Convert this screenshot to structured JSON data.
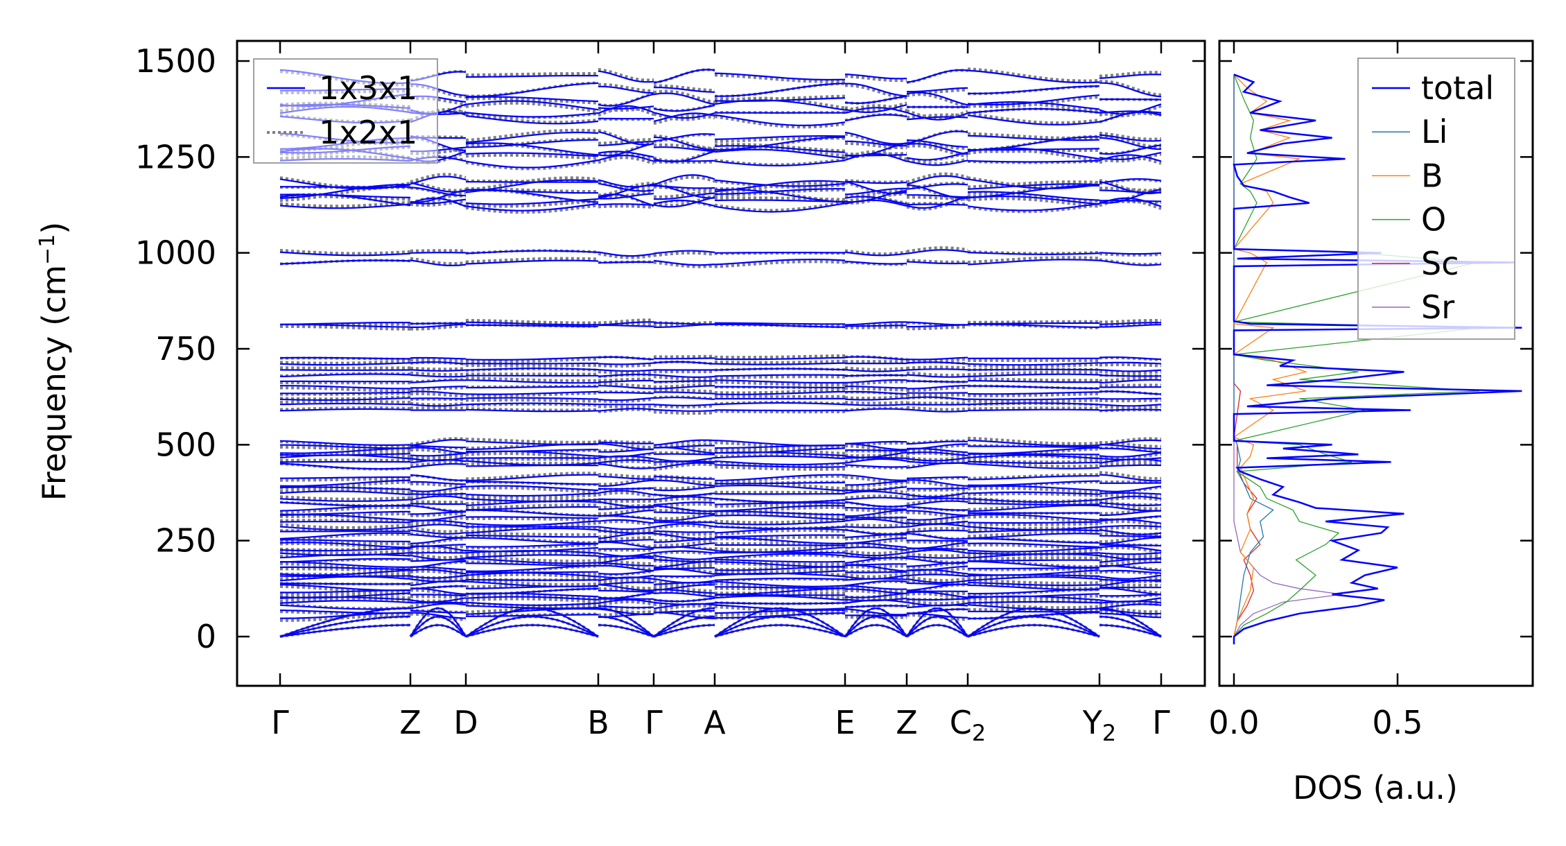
{
  "chart_data": [
    {
      "type": "line",
      "title": "",
      "ylabel": "Frequency (cm⁻¹)",
      "ylabel_main": "Frequency (cm",
      "ylabel_sup": "−1",
      "ylabel_close": ")",
      "ylim": [
        -125,
        1560
      ],
      "yticks": [
        0,
        250,
        500,
        750,
        1000,
        1250,
        1500
      ],
      "xticks": [
        {
          "label": "Γ",
          "sub": ""
        },
        {
          "label": "Z",
          "sub": ""
        },
        {
          "label": "D",
          "sub": ""
        },
        {
          "label": "B",
          "sub": ""
        },
        {
          "label": "Γ",
          "sub": ""
        },
        {
          "label": "A",
          "sub": ""
        },
        {
          "label": "E",
          "sub": ""
        },
        {
          "label": "Z",
          "sub": ""
        },
        {
          "label": "C",
          "sub": "2"
        },
        {
          "label": "Y",
          "sub": "2"
        },
        {
          "label": "Γ",
          "sub": ""
        }
      ],
      "legend": {
        "position": "top-left",
        "entries": [
          {
            "name": "1x3x1",
            "color": "#0000ff",
            "style": "solid"
          },
          {
            "name": "1x2x1",
            "color": "#808080",
            "style": "dotted"
          }
        ]
      },
      "band_levels_cm1": [
        0,
        0,
        0,
        55,
        65,
        78,
        88,
        98,
        108,
        118,
        128,
        138,
        148,
        158,
        168,
        178,
        188,
        198,
        208,
        218,
        228,
        238,
        250,
        262,
        274,
        286,
        298,
        310,
        322,
        334,
        346,
        358,
        372,
        386,
        400,
        414,
        445,
        455,
        465,
        475,
        485,
        495,
        505,
        590,
        605,
        620,
        635,
        650,
        665,
        680,
        695,
        712,
        725,
        810,
        816,
        975,
        1000,
        1125,
        1135,
        1148,
        1160,
        1172,
        1185,
        1240,
        1255,
        1270,
        1285,
        1300,
        1350,
        1365,
        1380,
        1400,
        1425,
        1460
      ]
    },
    {
      "type": "line",
      "xlabel": "DOS (a.u.)",
      "xticks": [
        "0.0",
        "0.5"
      ],
      "xlim": [
        -0.04,
        0.92
      ],
      "legend": {
        "position": "top-right"
      },
      "series": [
        {
          "name": "total",
          "color": "#0000ff",
          "points": [
            [
              -20,
              0
            ],
            [
              0,
              0
            ],
            [
              20,
              0.03
            ],
            [
              40,
              0.1
            ],
            [
              60,
              0.2
            ],
            [
              80,
              0.38
            ],
            [
              95,
              0.46
            ],
            [
              110,
              0.3
            ],
            [
              125,
              0.44
            ],
            [
              140,
              0.36
            ],
            [
              160,
              0.4
            ],
            [
              180,
              0.5
            ],
            [
              200,
              0.33
            ],
            [
              225,
              0.38
            ],
            [
              250,
              0.3
            ],
            [
              270,
              0.45
            ],
            [
              285,
              0.47
            ],
            [
              300,
              0.28
            ],
            [
              320,
              0.52
            ],
            [
              335,
              0.25
            ],
            [
              350,
              0.2
            ],
            [
              370,
              0.12
            ],
            [
              390,
              0.15
            ],
            [
              410,
              0.08
            ],
            [
              430,
              0.02
            ],
            [
              440,
              0.01
            ],
            [
              455,
              0.48
            ],
            [
              465,
              0.1
            ],
            [
              475,
              0.38
            ],
            [
              490,
              0.15
            ],
            [
              500,
              0.3
            ],
            [
              510,
              0
            ],
            [
              580,
              0
            ],
            [
              590,
              0.54
            ],
            [
              600,
              0.04
            ],
            [
              620,
              0.3
            ],
            [
              640,
              0.88
            ],
            [
              655,
              0.1
            ],
            [
              670,
              0.32
            ],
            [
              690,
              0.52
            ],
            [
              705,
              0.14
            ],
            [
              720,
              0.18
            ],
            [
              735,
              0
            ],
            [
              798,
              0
            ],
            [
              805,
              0.88
            ],
            [
              815,
              0.05
            ],
            [
              822,
              0
            ],
            [
              965,
              0
            ],
            [
              975,
              0.86
            ],
            [
              985,
              0.01
            ],
            [
              1000,
              0.45
            ],
            [
              1010,
              0
            ],
            [
              1115,
              0
            ],
            [
              1130,
              0.23
            ],
            [
              1145,
              0.17
            ],
            [
              1160,
              0.12
            ],
            [
              1175,
              0.03
            ],
            [
              1200,
              0.01
            ],
            [
              1230,
              0
            ],
            [
              1245,
              0.34
            ],
            [
              1260,
              0.04
            ],
            [
              1285,
              0.15
            ],
            [
              1300,
              0.3
            ],
            [
              1320,
              0.08
            ],
            [
              1345,
              0.25
            ],
            [
              1365,
              0.05
            ],
            [
              1395,
              0.14
            ],
            [
              1420,
              0.03
            ],
            [
              1445,
              0.06
            ],
            [
              1465,
              0
            ]
          ]
        },
        {
          "name": "Li",
          "color": "#1f77b4",
          "points": [
            [
              -20,
              0
            ],
            [
              0,
              0
            ],
            [
              40,
              0.01
            ],
            [
              100,
              0.02
            ],
            [
              160,
              0.03
            ],
            [
              220,
              0.05
            ],
            [
              260,
              0.09
            ],
            [
              300,
              0.08
            ],
            [
              330,
              0.12
            ],
            [
              360,
              0.05
            ],
            [
              400,
              0.03
            ],
            [
              430,
              0.01
            ],
            [
              460,
              0.02
            ],
            [
              500,
              0.01
            ],
            [
              520,
              0
            ],
            [
              1465,
              0
            ]
          ]
        },
        {
          "name": "B",
          "color": "#ff7f0e",
          "points": [
            [
              -20,
              0
            ],
            [
              0,
              0
            ],
            [
              40,
              0.01
            ],
            [
              80,
              0.03
            ],
            [
              120,
              0.05
            ],
            [
              180,
              0.06
            ],
            [
              220,
              0.02
            ],
            [
              280,
              0.05
            ],
            [
              320,
              0.04
            ],
            [
              360,
              0.06
            ],
            [
              400,
              0.04
            ],
            [
              440,
              0.02
            ],
            [
              470,
              0.05
            ],
            [
              500,
              0.06
            ],
            [
              520,
              0
            ],
            [
              590,
              0.12
            ],
            [
              620,
              0.05
            ],
            [
              640,
              0.22
            ],
            [
              670,
              0.12
            ],
            [
              690,
              0.22
            ],
            [
              720,
              0.12
            ],
            [
              735,
              0
            ],
            [
              805,
              0.12
            ],
            [
              815,
              0
            ],
            [
              975,
              0.1
            ],
            [
              1000,
              0.05
            ],
            [
              1010,
              0
            ],
            [
              1130,
              0.12
            ],
            [
              1160,
              0.1
            ],
            [
              1180,
              0.02
            ],
            [
              1245,
              0.2
            ],
            [
              1260,
              0.05
            ],
            [
              1300,
              0.17
            ],
            [
              1320,
              0.08
            ],
            [
              1345,
              0.17
            ],
            [
              1365,
              0.05
            ],
            [
              1395,
              0.1
            ],
            [
              1430,
              0.04
            ],
            [
              1465,
              0
            ]
          ]
        },
        {
          "name": "O",
          "color": "#2ca02c",
          "points": [
            [
              -20,
              0
            ],
            [
              0,
              0
            ],
            [
              30,
              0.03
            ],
            [
              60,
              0.1
            ],
            [
              90,
              0.16
            ],
            [
              120,
              0.2
            ],
            [
              160,
              0.25
            ],
            [
              200,
              0.19
            ],
            [
              240,
              0.28
            ],
            [
              270,
              0.32
            ],
            [
              300,
              0.2
            ],
            [
              330,
              0.18
            ],
            [
              360,
              0.1
            ],
            [
              390,
              0.08
            ],
            [
              430,
              0.01
            ],
            [
              455,
              0.36
            ],
            [
              475,
              0.28
            ],
            [
              500,
              0.2
            ],
            [
              510,
              0
            ],
            [
              590,
              0.4
            ],
            [
              620,
              0.2
            ],
            [
              640,
              0.75
            ],
            [
              670,
              0.2
            ],
            [
              690,
              0.38
            ],
            [
              720,
              0.1
            ],
            [
              735,
              0
            ],
            [
              805,
              0.75
            ],
            [
              820,
              0
            ],
            [
              975,
              0.74
            ],
            [
              1000,
              0.38
            ],
            [
              1010,
              0
            ],
            [
              1130,
              0.07
            ],
            [
              1160,
              0.05
            ],
            [
              1180,
              0.02
            ],
            [
              1245,
              0.07
            ],
            [
              1300,
              0.05
            ],
            [
              1345,
              0.06
            ],
            [
              1400,
              0.03
            ],
            [
              1465,
              0
            ]
          ]
        },
        {
          "name": "Sc",
          "color": "#d62728",
          "points": [
            [
              -20,
              0
            ],
            [
              0,
              0
            ],
            [
              40,
              0.01
            ],
            [
              80,
              0.04
            ],
            [
              120,
              0.06
            ],
            [
              160,
              0.05
            ],
            [
              200,
              0.03
            ],
            [
              240,
              0.08
            ],
            [
              280,
              0.05
            ],
            [
              320,
              0.04
            ],
            [
              360,
              0.07
            ],
            [
              400,
              0.03
            ],
            [
              440,
              0.01
            ],
            [
              500,
              0.01
            ],
            [
              520,
              0
            ],
            [
              640,
              0.02
            ],
            [
              660,
              0
            ],
            [
              1465,
              0
            ]
          ]
        },
        {
          "name": "Sr",
          "color": "#9467bd",
          "points": [
            [
              -20,
              0
            ],
            [
              0,
              0
            ],
            [
              30,
              0.02
            ],
            [
              60,
              0.06
            ],
            [
              90,
              0.15
            ],
            [
              110,
              0.33
            ],
            [
              125,
              0.2
            ],
            [
              140,
              0.12
            ],
            [
              160,
              0.08
            ],
            [
              180,
              0.06
            ],
            [
              220,
              0.02
            ],
            [
              260,
              0.01
            ],
            [
              300,
              0
            ],
            [
              1465,
              0
            ]
          ]
        }
      ]
    }
  ]
}
